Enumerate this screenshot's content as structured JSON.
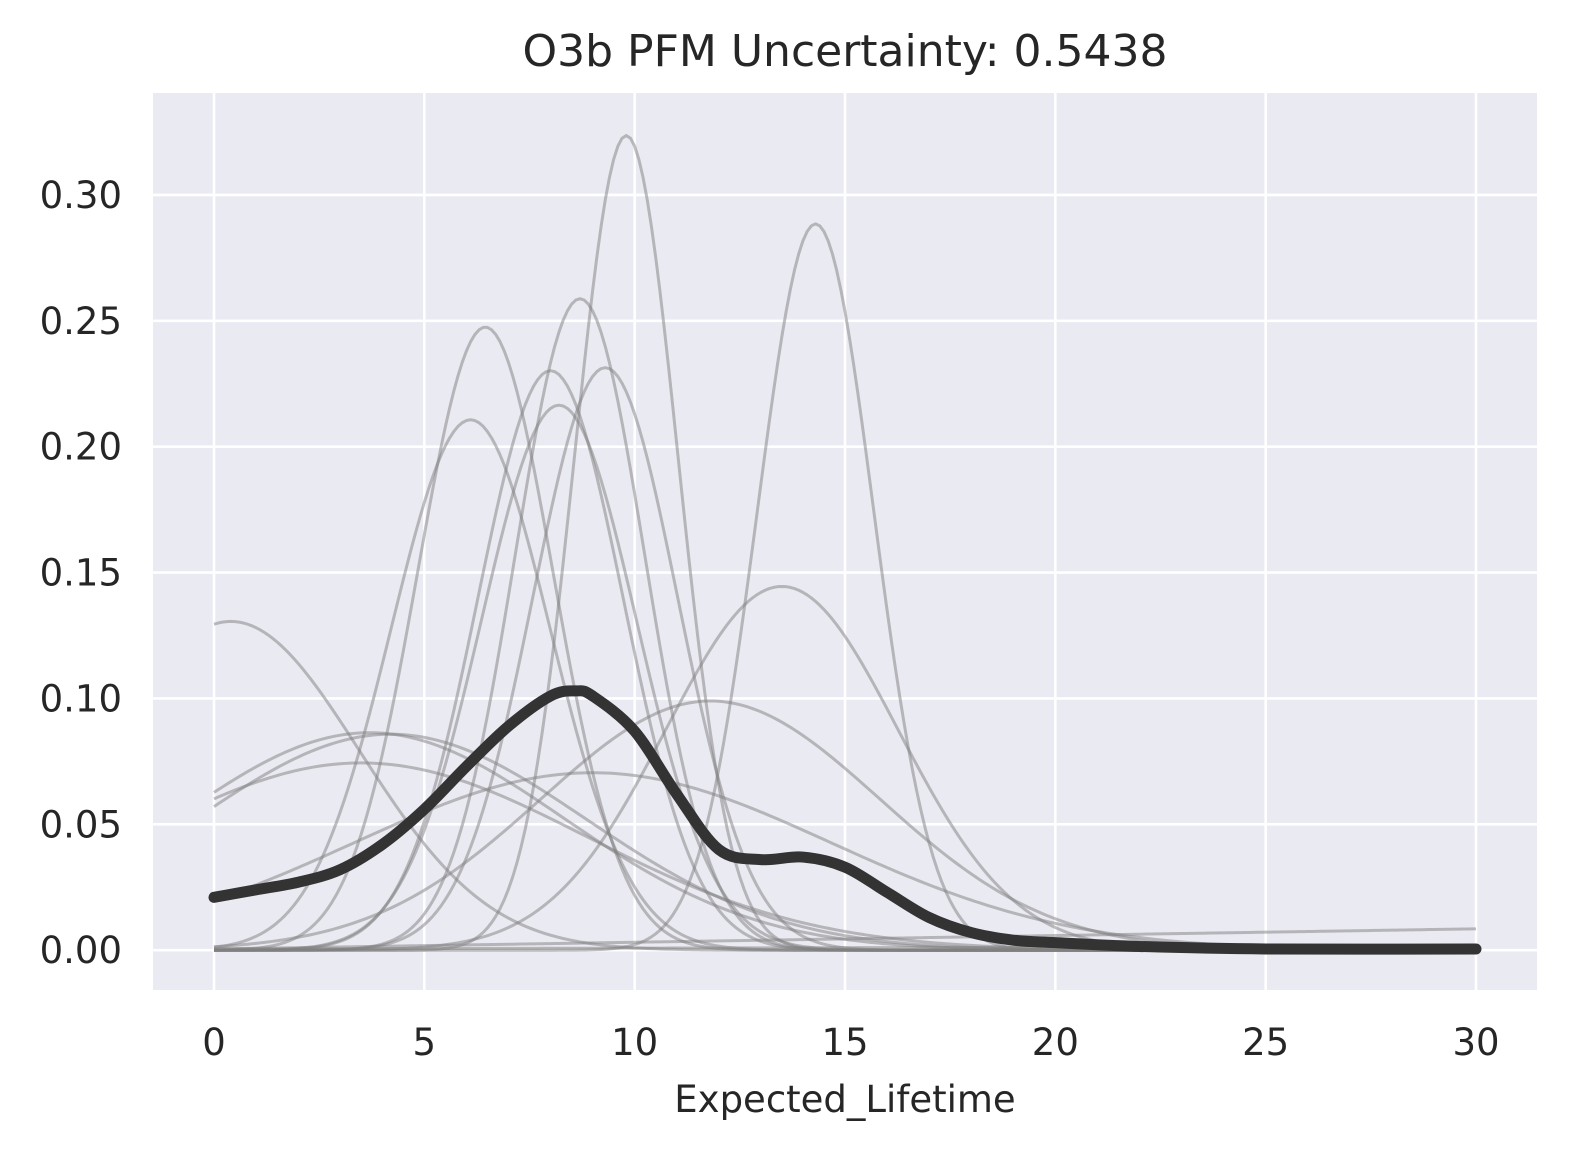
{
  "chart_data": {
    "type": "line",
    "title": "O3b PFM Uncertainty: 0.5438",
    "xlabel": "Expected_Lifetime",
    "ylabel": "",
    "xlim": [
      -1.45,
      31.45
    ],
    "ylim": [
      -0.0158,
      0.3405
    ],
    "xticks": [
      0,
      5,
      10,
      15,
      20,
      25,
      30
    ],
    "yticks": [
      0.0,
      0.05,
      0.1,
      0.15,
      0.2,
      0.25,
      0.3
    ],
    "xtick_labels": [
      "0",
      "5",
      "10",
      "15",
      "20",
      "25",
      "30"
    ],
    "ytick_labels": [
      "0.00",
      "0.05",
      "0.10",
      "0.15",
      "0.20",
      "0.25",
      "0.30"
    ],
    "grid": true,
    "legend": "none",
    "x_range": [
      0,
      30
    ],
    "colors": {
      "background": "#eaeaf2",
      "grid": "#ffffff",
      "member_line": "#7f7f7f",
      "mean_line": "#333333"
    },
    "series": [
      {
        "kind": "gaussian",
        "peak": 0.3236,
        "mu": 9.8,
        "sigma": 1.23
      },
      {
        "kind": "gaussian",
        "peak": 0.2885,
        "mu": 14.3,
        "sigma": 1.38
      },
      {
        "kind": "gaussian",
        "peak": 0.2588,
        "mu": 8.7,
        "sigma": 1.54
      },
      {
        "kind": "gaussian",
        "peak": 0.2475,
        "mu": 6.45,
        "sigma": 1.61
      },
      {
        "kind": "gaussian",
        "peak": 0.2314,
        "mu": 9.3,
        "sigma": 1.72
      },
      {
        "kind": "gaussian",
        "peak": 0.2302,
        "mu": 8.0,
        "sigma": 1.73
      },
      {
        "kind": "gaussian",
        "peak": 0.2165,
        "mu": 8.2,
        "sigma": 1.84
      },
      {
        "kind": "gaussian",
        "peak": 0.2107,
        "mu": 6.1,
        "sigma": 1.89
      },
      {
        "kind": "gaussian",
        "peak": 0.1445,
        "mu": 13.5,
        "sigma": 2.76
      },
      {
        "kind": "gaussian",
        "peak": 0.1306,
        "mu": 0.4,
        "sigma": 3.06
      },
      {
        "kind": "gaussian",
        "peak": 0.099,
        "mu": 11.8,
        "sigma": 4.03
      },
      {
        "kind": "gaussian",
        "peak": 0.0864,
        "mu": 3.7,
        "sigma": 4.62
      },
      {
        "kind": "gaussian",
        "peak": 0.0858,
        "mu": 4.2,
        "sigma": 4.65
      },
      {
        "kind": "gaussian",
        "peak": 0.0744,
        "mu": 3.5,
        "sigma": 5.36
      },
      {
        "kind": "gaussian",
        "peak": 0.0705,
        "mu": 9.0,
        "sigma": 5.66
      },
      {
        "kind": "linear",
        "y0": 0.0005,
        "y1": 0.0085
      },
      {
        "kind": "linear",
        "y0": 0.0005,
        "y1": 0.0015
      }
    ],
    "mean_curve": {
      "x": [
        0,
        1,
        2,
        3,
        4,
        5,
        6,
        7,
        8,
        8.6,
        9,
        10,
        11,
        12,
        13,
        14,
        15,
        16,
        17,
        18,
        19,
        20,
        22,
        25,
        30
      ],
      "y": [
        0.021,
        0.024,
        0.027,
        0.032,
        0.042,
        0.056,
        0.073,
        0.089,
        0.101,
        0.103,
        0.101,
        0.087,
        0.062,
        0.04,
        0.036,
        0.037,
        0.033,
        0.023,
        0.013,
        0.007,
        0.004,
        0.003,
        0.0015,
        0.0005,
        0.0005
      ]
    }
  }
}
